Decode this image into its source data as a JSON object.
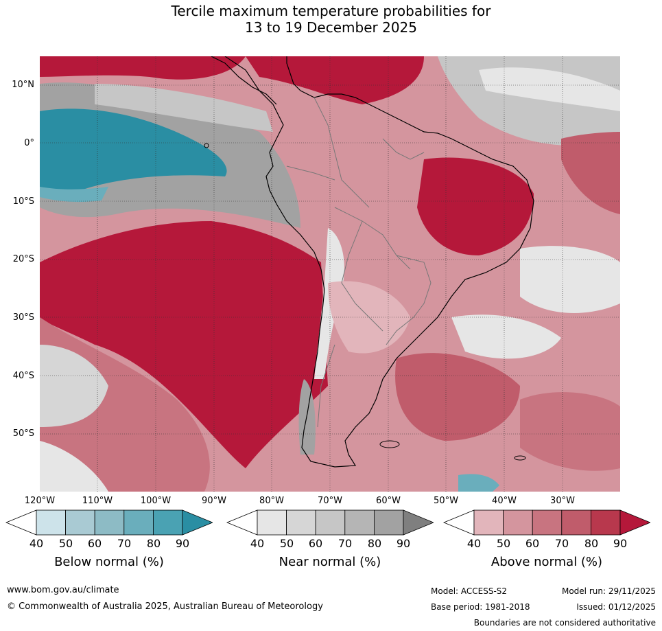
{
  "title": {
    "line1": "Tercile maximum temperature probabilities for",
    "line2": "13 to 19 December 2025"
  },
  "map": {
    "lat_labels": [
      "10°N",
      "0°",
      "10°S",
      "20°S",
      "30°S",
      "40°S",
      "50°S"
    ],
    "lon_labels": [
      "120°W",
      "110°W",
      "100°W",
      "90°W",
      "80°W",
      "70°W",
      "60°W",
      "50°W",
      "40°W",
      "30°W"
    ]
  },
  "legends": {
    "below": {
      "title": "Below normal (%)",
      "ticks": [
        "40",
        "50",
        "60",
        "70",
        "80",
        "90"
      ],
      "colors": [
        "#ffffff",
        "#cde3ea",
        "#a9cad3",
        "#8dbbc5",
        "#6aaebc",
        "#4aa2b3",
        "#2a8ea3"
      ]
    },
    "near": {
      "title": "Near normal (%)",
      "ticks": [
        "40",
        "50",
        "60",
        "70",
        "80",
        "90"
      ],
      "colors": [
        "#ffffff",
        "#e6e6e6",
        "#d6d6d6",
        "#c6c6c6",
        "#b5b5b5",
        "#a2a2a2",
        "#7f7f7f"
      ]
    },
    "above": {
      "title": "Above normal (%)",
      "ticks": [
        "40",
        "50",
        "60",
        "70",
        "80",
        "90"
      ],
      "colors": [
        "#ffffff",
        "#e2b5bb",
        "#d4959e",
        "#c87480",
        "#c05c6b",
        "#b8384d",
        "#b5183a"
      ]
    }
  },
  "footer": {
    "url": "www.bom.gov.au/climate",
    "copyright": "© Commonwealth of Australia 2025, Australian Bureau of Meteorology",
    "model": "Model: ACCESS-S2",
    "base_period": "Base period: 1981-2018",
    "model_run": "Model run: 29/11/2025",
    "issued": "Issued: 01/12/2025",
    "disclaimer": "Boundaries are not considered authoritative"
  }
}
